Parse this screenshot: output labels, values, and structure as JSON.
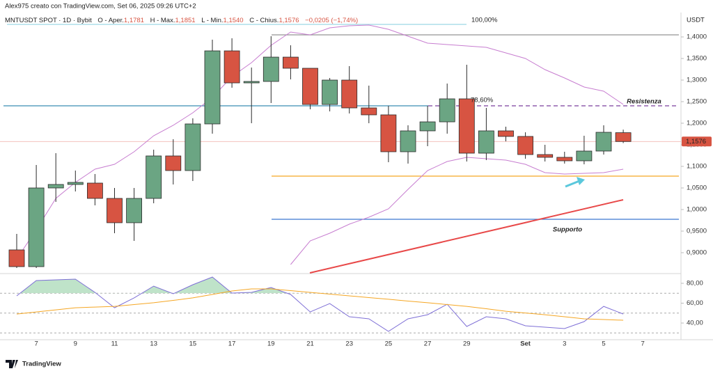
{
  "header": {
    "author": "Alex975 creato con TradingView.com, Set 06, 2025 09:26 UTC+2",
    "symbol": "MNTUSDT SPOT · 1D · Bybit",
    "ohlc": [
      {
        "name": "O - Aper.",
        "value": "1,1781"
      },
      {
        "name": "H - Max.",
        "value": "1,1851"
      },
      {
        "name": "L - Min.",
        "value": "1,1540"
      },
      {
        "name": "C - Chius.",
        "value": "1,1576"
      }
    ],
    "change": "−0,0205 (−1,74%)"
  },
  "currency": "USDT",
  "logo": "TradingView",
  "chart_data": [
    {
      "type": "candlestick",
      "categories": [
        null,
        "7",
        null,
        "9",
        null,
        "11",
        null,
        "13",
        null,
        "15",
        null,
        "17",
        null,
        "19",
        null,
        "21",
        null,
        "23",
        null,
        "25",
        null,
        "27",
        null,
        "29",
        null,
        null,
        "Set",
        null,
        "3",
        null,
        "5",
        null,
        "7"
      ],
      "open": [
        0.9065,
        0.8677,
        1.05,
        1.0581,
        1.0613,
        1.0258,
        0.9694,
        1.0258,
        1.1242,
        1.0903,
        1.1984,
        1.3677,
        1.2935,
        1.2968,
        1.3532,
        1.3274,
        1.2435,
        1.3,
        1.2355,
        1.2194,
        1.1339,
        1.1823,
        1.2032,
        1.2565,
        1.1306,
        1.1823,
        1.1694,
        1.1274,
        1.121,
        1.1129,
        1.1355,
        1.1781,
        null
      ],
      "high": [
        0.9435,
        1.1032,
        1.1306,
        1.0903,
        1.0823,
        1.05,
        1.05,
        1.1387,
        1.1629,
        1.2113,
        1.3935,
        1.3968,
        1.329,
        1.4016,
        1.3806,
        1.3274,
        1.3048,
        1.3323,
        1.2871,
        1.2403,
        1.1952,
        1.2403,
        1.2919,
        1.3355,
        1.2355,
        1.1919,
        1.179,
        1.15,
        1.1339,
        1.171,
        1.1952,
        1.1851,
        null
      ],
      "low": [
        0.8645,
        0.8645,
        1.0177,
        1.0419,
        1.0097,
        0.9452,
        0.9274,
        1.0145,
        1.0581,
        1.0661,
        1.1758,
        1.2823,
        1.2,
        1.2468,
        1.3016,
        1.2323,
        1.2274,
        1.2226,
        1.2,
        1.1097,
        1.1065,
        1.1468,
        1.1758,
        1.1113,
        1.1145,
        1.1581,
        1.1177,
        1.1113,
        1.1065,
        1.1048,
        1.1274,
        1.154,
        null
      ],
      "close": [
        0.8677,
        1.05,
        1.0581,
        1.0629,
        1.0258,
        0.9694,
        1.0258,
        1.1242,
        1.0903,
        1.1984,
        1.3677,
        1.2935,
        1.2968,
        1.3532,
        1.3274,
        1.2435,
        1.3,
        1.2355,
        1.2194,
        1.1339,
        1.1823,
        1.2032,
        1.2565,
        1.1306,
        1.1823,
        1.1694,
        1.1274,
        1.121,
        1.1129,
        1.1355,
        1.179,
        1.1576,
        null
      ],
      "up_color": "#6ba583",
      "down_color": "#d75442",
      "ylim": [
        0.8532,
        1.4565
      ],
      "yticks": [
        {
          "value": 0.9,
          "label": "0,9000"
        },
        {
          "value": 0.95,
          "label": "0,9500"
        },
        {
          "value": 1.0,
          "label": "1,0000"
        },
        {
          "value": 1.05,
          "label": "1,0500"
        },
        {
          "value": 1.1,
          "label": "1,1000"
        },
        {
          "value": 1.15,
          "label": "1,1500"
        },
        {
          "value": 1.2,
          "label": "1,2000"
        },
        {
          "value": 1.25,
          "label": "1,2500"
        },
        {
          "value": 1.3,
          "label": "1,3000"
        },
        {
          "value": 1.35,
          "label": "1,3500"
        },
        {
          "value": 1.4,
          "label": "1,4000"
        }
      ],
      "last_price": {
        "value": 1.1576,
        "label": "1,1576"
      },
      "bands": [
        {
          "color": "#c77dd0",
          "values": [
            0.8855,
            0.9532,
            1.0258,
            1.0629,
            1.0935,
            1.1048,
            1.1339,
            1.171,
            1.1952,
            1.2242,
            1.2597,
            1.3081,
            1.3403,
            1.3806,
            1.4113,
            1.4048,
            1.421,
            1.4258,
            1.4274,
            1.4177,
            1.4016,
            1.3855,
            1.3823,
            1.379,
            1.3758,
            1.3629,
            1.35,
            1.3242,
            1.3048,
            1.2839,
            1.2742,
            1.2435,
            null
          ]
        },
        {
          "color": "#c77dd0",
          "values": [
            null,
            null,
            null,
            null,
            null,
            null,
            null,
            null,
            null,
            null,
            null,
            null,
            null,
            null,
            0.8726,
            0.9274,
            0.9452,
            0.9661,
            0.9823,
            1.0016,
            1.0468,
            1.0903,
            1.1113,
            1.121,
            1.1177,
            1.1145,
            1.1048,
            1.0855,
            1.0823,
            1.0839,
            1.0855,
            1.0935,
            null
          ]
        }
      ],
      "levels": [
        {
          "value": 1.429,
          "color": "#a6dbe8",
          "label": "100,00%"
        },
        {
          "value": 1.2403,
          "color": "#3b8db4",
          "label": "78,60%"
        },
        {
          "value": 1.2403,
          "color": "#7b3f9e",
          "label": "Resistenza"
        },
        {
          "value": 1.4048,
          "color": "#9e9e9e"
        },
        {
          "value": 1.0774,
          "color": "#f5a623"
        },
        {
          "value": 0.9774,
          "color": "#3a78d0",
          "label": "Supporto"
        }
      ],
      "trendline": {
        "color": "#e84848",
        "values": [
          0.8532,
          1.0226
        ]
      }
    },
    {
      "type": "line",
      "series": [
        {
          "color": "#7e6fd6",
          "values": [
            67.4,
            82.8,
            83.5,
            84.2,
            70.9,
            55.4,
            65.3,
            77.2,
            69.5,
            78.6,
            86.3,
            70.2,
            70.9,
            75.8,
            68.8,
            51.2,
            59.6,
            46.3,
            44.2,
            31.6,
            44.2,
            48.4,
            58.9,
            36.5,
            46.3,
            44.2,
            37.2,
            35.8,
            34.4,
            41.4,
            56.8,
            49.1,
            null
          ]
        },
        {
          "color": "#f5a623",
          "values": [
            49.1,
            51.2,
            53.3,
            55.4,
            56.1,
            56.8,
            58.6,
            60.4,
            62.8,
            65.3,
            68.8,
            72.3,
            74.4,
            74.4,
            72.6,
            70.9,
            69.1,
            67.4,
            65.6,
            63.9,
            62.1,
            60.4,
            58.6,
            56.8,
            54.4,
            51.9,
            50.1,
            48.4,
            46.3,
            44.2,
            43.5,
            42.8,
            null
          ]
        }
      ],
      "ylim": [
        25.3,
        88.4
      ],
      "yticks": [
        {
          "value": 40,
          "label": "40,00"
        },
        {
          "value": 60,
          "label": "60,00"
        },
        {
          "value": 80,
          "label": "80,00"
        }
      ],
      "levels": [
        70,
        50,
        30
      ],
      "fill_color": "#bfe3c9"
    }
  ]
}
